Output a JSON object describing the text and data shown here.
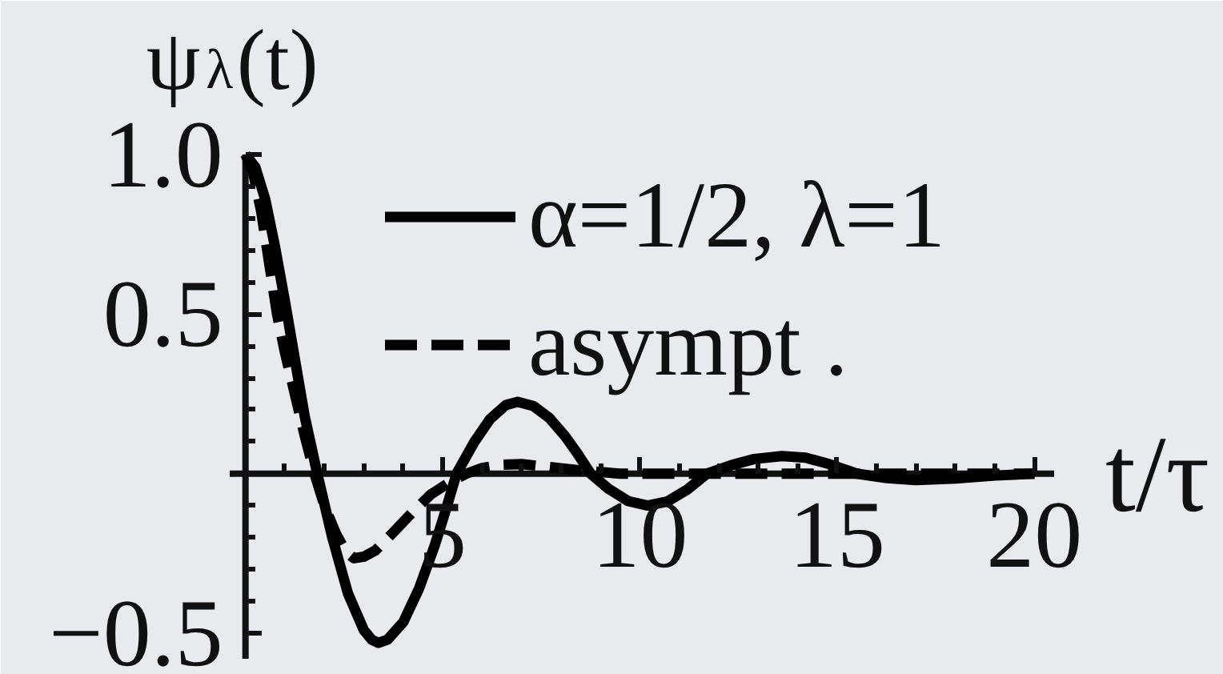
{
  "chart_data": {
    "type": "line",
    "ylabel": "ψ$_{λ}$(t)",
    "xlabel": "t/τ",
    "xlim": [
      -0.4,
      20.5
    ],
    "ylim": [
      -0.58,
      1.0
    ],
    "xticks": [
      {
        "value": 1,
        "label": null
      },
      {
        "value": 2,
        "label": null
      },
      {
        "value": 3,
        "label": null
      },
      {
        "value": 4,
        "label": null
      },
      5,
      {
        "value": 6,
        "label": null
      },
      {
        "value": 7,
        "label": null
      },
      {
        "value": 8,
        "label": null
      },
      {
        "value": 9,
        "label": null
      },
      10,
      {
        "value": 11,
        "label": null
      },
      {
        "value": 12,
        "label": null
      },
      {
        "value": 13,
        "label": null
      },
      {
        "value": 14,
        "label": null
      },
      15,
      {
        "value": 16,
        "label": null
      },
      {
        "value": 17,
        "label": null
      },
      {
        "value": 18,
        "label": null
      },
      {
        "value": 19,
        "label": null
      },
      20
    ],
    "yticks": [
      {
        "value": -0.5,
        "label": "−0.5"
      },
      {
        "value": -0.4,
        "label": null
      },
      {
        "value": -0.3,
        "label": null
      },
      {
        "value": -0.2,
        "label": null
      },
      {
        "value": -0.1,
        "label": null
      },
      {
        "value": 0.1,
        "label": null
      },
      {
        "value": 0.2,
        "label": null
      },
      {
        "value": 0.3,
        "label": null
      },
      {
        "value": 0.4,
        "label": null
      },
      {
        "value": 0.5,
        "label": "0.5"
      },
      {
        "value": 0.6,
        "label": null
      },
      {
        "value": 0.7,
        "label": null
      },
      {
        "value": 0.8,
        "label": null
      },
      {
        "value": 0.9,
        "label": null
      },
      {
        "value": 1,
        "label": "1.0"
      }
    ],
    "grid": false,
    "legend": "top",
    "series": [
      {
        "name": "α=1/2, λ=1",
        "color": "#000000",
        "line_style": "solid",
        "x": [
          0,
          0.25,
          0.5,
          0.75,
          1.0,
          1.25,
          1.5,
          1.82,
          2.2,
          2.6,
          3.0,
          3.2,
          3.37,
          3.6,
          4.0,
          4.4,
          4.8,
          5.1,
          5.35,
          5.8,
          6.2,
          6.6,
          6.9,
          7.3,
          7.7,
          8.1,
          8.4,
          8.75,
          9.2,
          9.7,
          10.2,
          10.7,
          11.2,
          11.7,
          12.3,
          12.9,
          13.6,
          14.2,
          14.8,
          15.5,
          16.2,
          17.0,
          18.0,
          19.0,
          20.0
        ],
        "values": [
          1.0,
          0.96,
          0.86,
          0.71,
          0.54,
          0.36,
          0.18,
          0.0,
          -0.2,
          -0.376,
          -0.49,
          -0.52,
          -0.53,
          -0.52,
          -0.465,
          -0.36,
          -0.224,
          -0.105,
          0.0,
          0.099,
          0.171,
          0.215,
          0.225,
          0.212,
          0.175,
          0.118,
          0.066,
          0.0,
          -0.047,
          -0.086,
          -0.1,
          -0.087,
          -0.05,
          0.0,
          0.026,
          0.046,
          0.055,
          0.05,
          0.03,
          0.0,
          -0.013,
          -0.02,
          -0.015,
          -0.006,
          0.0
        ]
      },
      {
        "name": "asympt .",
        "color": "#000000",
        "line_style": "dashed",
        "x": [
          0,
          0.2,
          0.4,
          0.6,
          0.8,
          1.0,
          1.25,
          1.5,
          1.75,
          2.0,
          2.3,
          2.55,
          2.75,
          3.0,
          3.3,
          3.7,
          4.2,
          4.7,
          5.2,
          5.6,
          6.0,
          6.5,
          7.0,
          7.6,
          8.5,
          9.5,
          12,
          16,
          20
        ],
        "values": [
          1.0,
          0.94,
          0.82,
          0.66,
          0.5,
          0.38,
          0.25,
          0.12,
          0.0,
          -0.1,
          -0.19,
          -0.245,
          -0.265,
          -0.26,
          -0.24,
          -0.19,
          -0.125,
          -0.065,
          -0.025,
          0.0,
          0.018,
          0.028,
          0.03,
          0.022,
          0.01,
          0.0,
          0.0,
          0.0,
          0.0
        ]
      }
    ]
  }
}
